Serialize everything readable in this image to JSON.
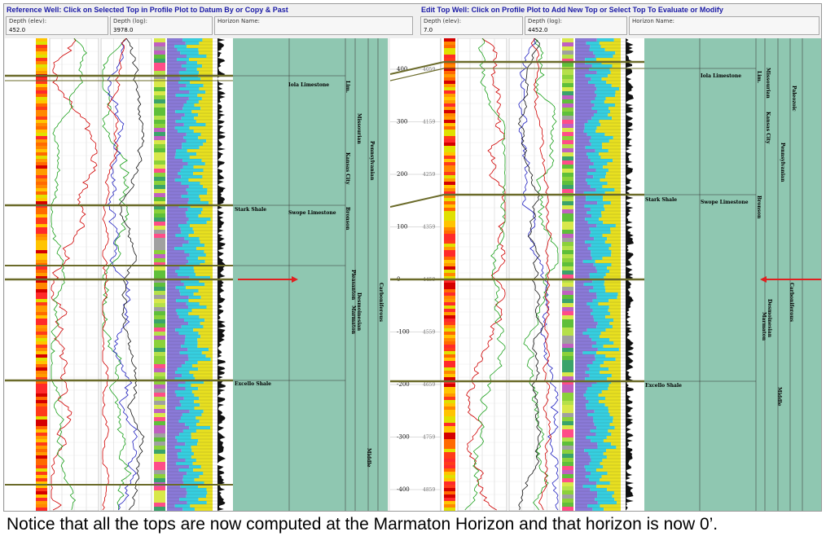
{
  "left_panel": {
    "title": "Reference Well: Click on Selected Top in Profile Plot to Datum By or Copy & Past",
    "fields": [
      {
        "label": "Depth (elev):",
        "value": "452.0"
      },
      {
        "label": "Depth (log):",
        "value": "3978.0"
      },
      {
        "label": "Horizon Name:",
        "value": ""
      }
    ],
    "tops": [
      "Iola Limestone",
      "Stark Shale",
      "Swope Limestone",
      "Excello Shale"
    ],
    "strat_units": [
      "Lim.",
      "Missourian",
      "Kansas City",
      "Pennsylvanian",
      "Bronson",
      "Pleasanton",
      "Desmoinesian",
      "Marmaton",
      "Carboniferous",
      "Middle"
    ]
  },
  "right_panel": {
    "title": "Edit Top Well: Click on Profile Plot to Add New Top or Select Top To Evaluate or Modify",
    "fields": [
      {
        "label": "Depth (elev):",
        "value": "7.0"
      },
      {
        "label": "Depth (log):",
        "value": "4452.0"
      },
      {
        "label": "Horizon Name:",
        "value": ""
      }
    ],
    "axis": [
      {
        "elev": "400",
        "log": "4059"
      },
      {
        "elev": "300",
        "log": "4159"
      },
      {
        "elev": "200",
        "log": "4259"
      },
      {
        "elev": "100",
        "log": "4359"
      },
      {
        "elev": "0",
        "log": "4459"
      },
      {
        "elev": "-100",
        "log": "4559"
      },
      {
        "elev": "-200",
        "log": "4659"
      },
      {
        "elev": "-300",
        "log": "4759"
      },
      {
        "elev": "-400",
        "log": "4859"
      }
    ],
    "tops": [
      "Iola Limestone",
      "Stark Shale",
      "Swope Limestone",
      "Excello Shale"
    ],
    "strat_units": [
      "Lim.",
      "Missourian",
      "Kansas City",
      "Pennsylvanian",
      "Paleozoic",
      "Bronson",
      "Desmoinesian",
      "Marmaton",
      "Carboniferous",
      "Middle"
    ]
  },
  "caption": "Notice that all the tops are now computed at the Marmaton Horizon and that horizon is now 0’.",
  "colors": {
    "title": "#1a1aa6",
    "strat_fill": "#8fc7b1",
    "marker": "#e02020",
    "top_line": "#6b6b2a"
  }
}
